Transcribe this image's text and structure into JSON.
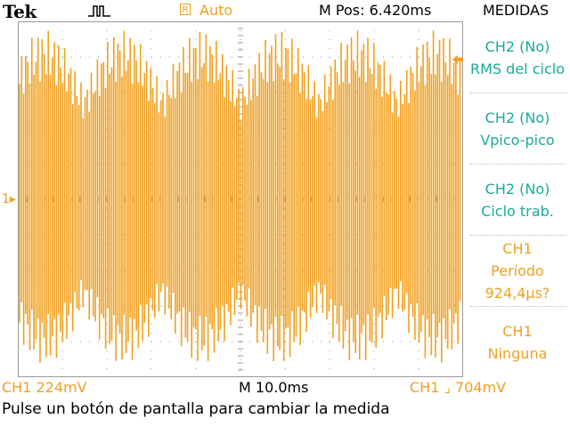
{
  "header": {
    "brand": "Tek",
    "trigger_mode_badge": "R",
    "trigger_mode": "Auto",
    "horizontal_position": "M Pos: 6.420ms",
    "menu_title": "MEDIDAS"
  },
  "measurements": [
    {
      "line1": "CH2 (No)",
      "line2": "RMS del ciclo",
      "line3": ""
    },
    {
      "line1": "CH2 (No)",
      "line2": "Vpico-pico",
      "line3": ""
    },
    {
      "line1": "CH2 (No)",
      "line2": "Ciclo trab.",
      "line3": ""
    },
    {
      "line1": "CH1",
      "line2": "Período",
      "line3": "924,4µs?"
    },
    {
      "line1": "CH1",
      "line2": "Ninguna",
      "line3": ""
    }
  ],
  "status_bar": {
    "channel_scale": "CH1  224mV",
    "timebase": "M 10.0ms",
    "trigger": "CH1 ⌟ 704mV"
  },
  "message": "Pulse un botón de pantalla para cambiar la medida",
  "markers": {
    "ch1_ground": "1"
  },
  "colors": {
    "ch1": "#f0a020",
    "menu_text": "#1aaa9a",
    "grid": "#9a9a9a"
  },
  "icons": {
    "acquisition": "pulse-icon",
    "trigger_position": "down-arrow-icon",
    "trigger_level": "left-arrow-icon"
  }
}
